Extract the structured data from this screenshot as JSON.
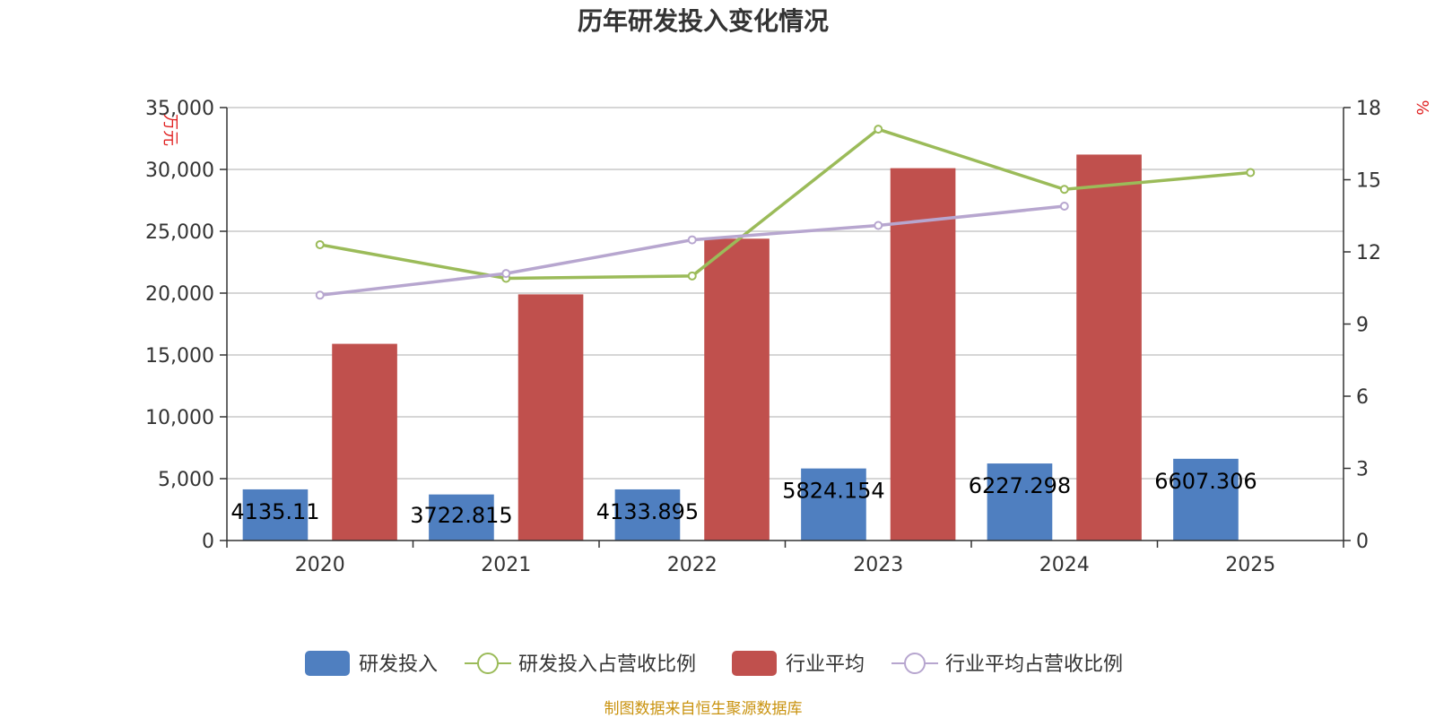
{
  "title": "历年研发投入变化情况",
  "source": "制图数据来自恒生聚源数据库",
  "colors": {
    "rd_bar": "#4f7fc0",
    "industry_bar": "#c0504d",
    "rd_ratio_line": "#9bbb59",
    "industry_ratio_line": "#b7a6cf",
    "axis": "#333333",
    "grid": "#c8c8c8",
    "unit": "#e02020"
  },
  "chart_data": {
    "type": "bar",
    "title": "历年研发投入变化情况",
    "categories": [
      "2020",
      "2021",
      "2022",
      "2023",
      "2024",
      "2025"
    ],
    "y_left": {
      "label": "万元",
      "range": [
        0,
        35000
      ],
      "ticks": [
        0,
        5000,
        10000,
        15000,
        20000,
        25000,
        30000,
        35000
      ],
      "tick_labels": [
        "0",
        "5,000",
        "10,000",
        "15,000",
        "20,000",
        "25,000",
        "30,000",
        "35,000"
      ]
    },
    "y_right": {
      "label": "%",
      "range": [
        0,
        18
      ],
      "ticks": [
        0,
        3,
        6,
        9,
        12,
        15,
        18
      ],
      "tick_labels": [
        "0",
        "3",
        "6",
        "9",
        "12",
        "15",
        "18"
      ]
    },
    "grid": true,
    "legend_position": "bottom",
    "series": [
      {
        "name": "研发投入",
        "kind": "bar",
        "axis": "left",
        "values": [
          4135.11,
          3722.815,
          4133.895,
          5824.154,
          6227.298,
          6607.306
        ],
        "data_labels": [
          "4135.11",
          "3722.815",
          "4133.895",
          "5824.154",
          "6227.298",
          "6607.306"
        ]
      },
      {
        "name": "研发投入占营收比例",
        "kind": "line",
        "axis": "right",
        "values": [
          12.3,
          10.9,
          11.0,
          17.1,
          14.6,
          15.3
        ]
      },
      {
        "name": "行业平均",
        "kind": "bar",
        "axis": "left",
        "values": [
          15900,
          19900,
          24400,
          30100,
          31200,
          null
        ]
      },
      {
        "name": "行业平均占营收比例",
        "kind": "line",
        "axis": "right",
        "values": [
          10.2,
          11.1,
          12.5,
          13.1,
          13.9,
          null
        ]
      }
    ]
  }
}
